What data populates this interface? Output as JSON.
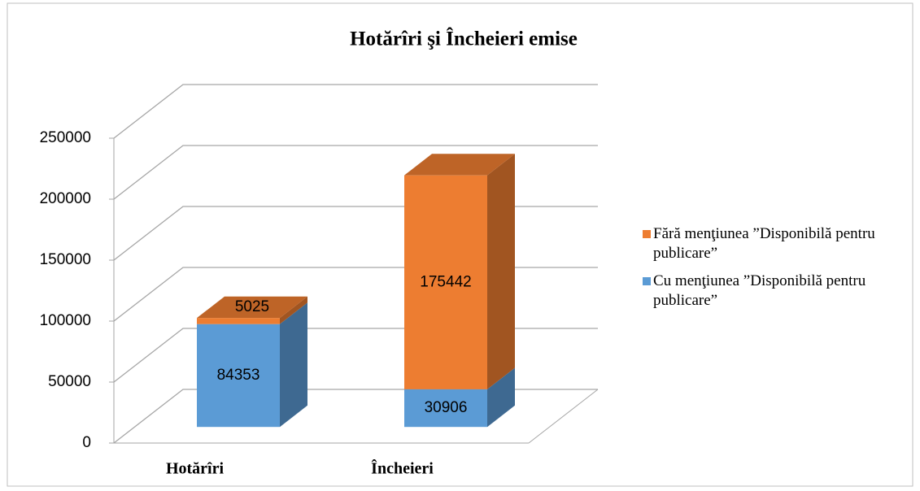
{
  "chart_data": {
    "type": "bar3d_stacked",
    "title": "Hotărîri şi Încheieri emise",
    "categories": [
      "Hotărîri",
      "Încheieri"
    ],
    "series": [
      {
        "name": "Cu menţiunea ”Disponibilă pentru publicare”",
        "color": "#5b9bd5",
        "values": [
          84353,
          30906
        ]
      },
      {
        "name": "Fără menţiunea ”Disponibilă pentru publicare”",
        "color": "#ed7d31",
        "values": [
          5025,
          175442
        ]
      }
    ],
    "ylim": [
      0,
      250000
    ],
    "yticks": [
      0,
      50000,
      100000,
      150000,
      200000,
      250000
    ],
    "grid": true,
    "legend": "right"
  }
}
